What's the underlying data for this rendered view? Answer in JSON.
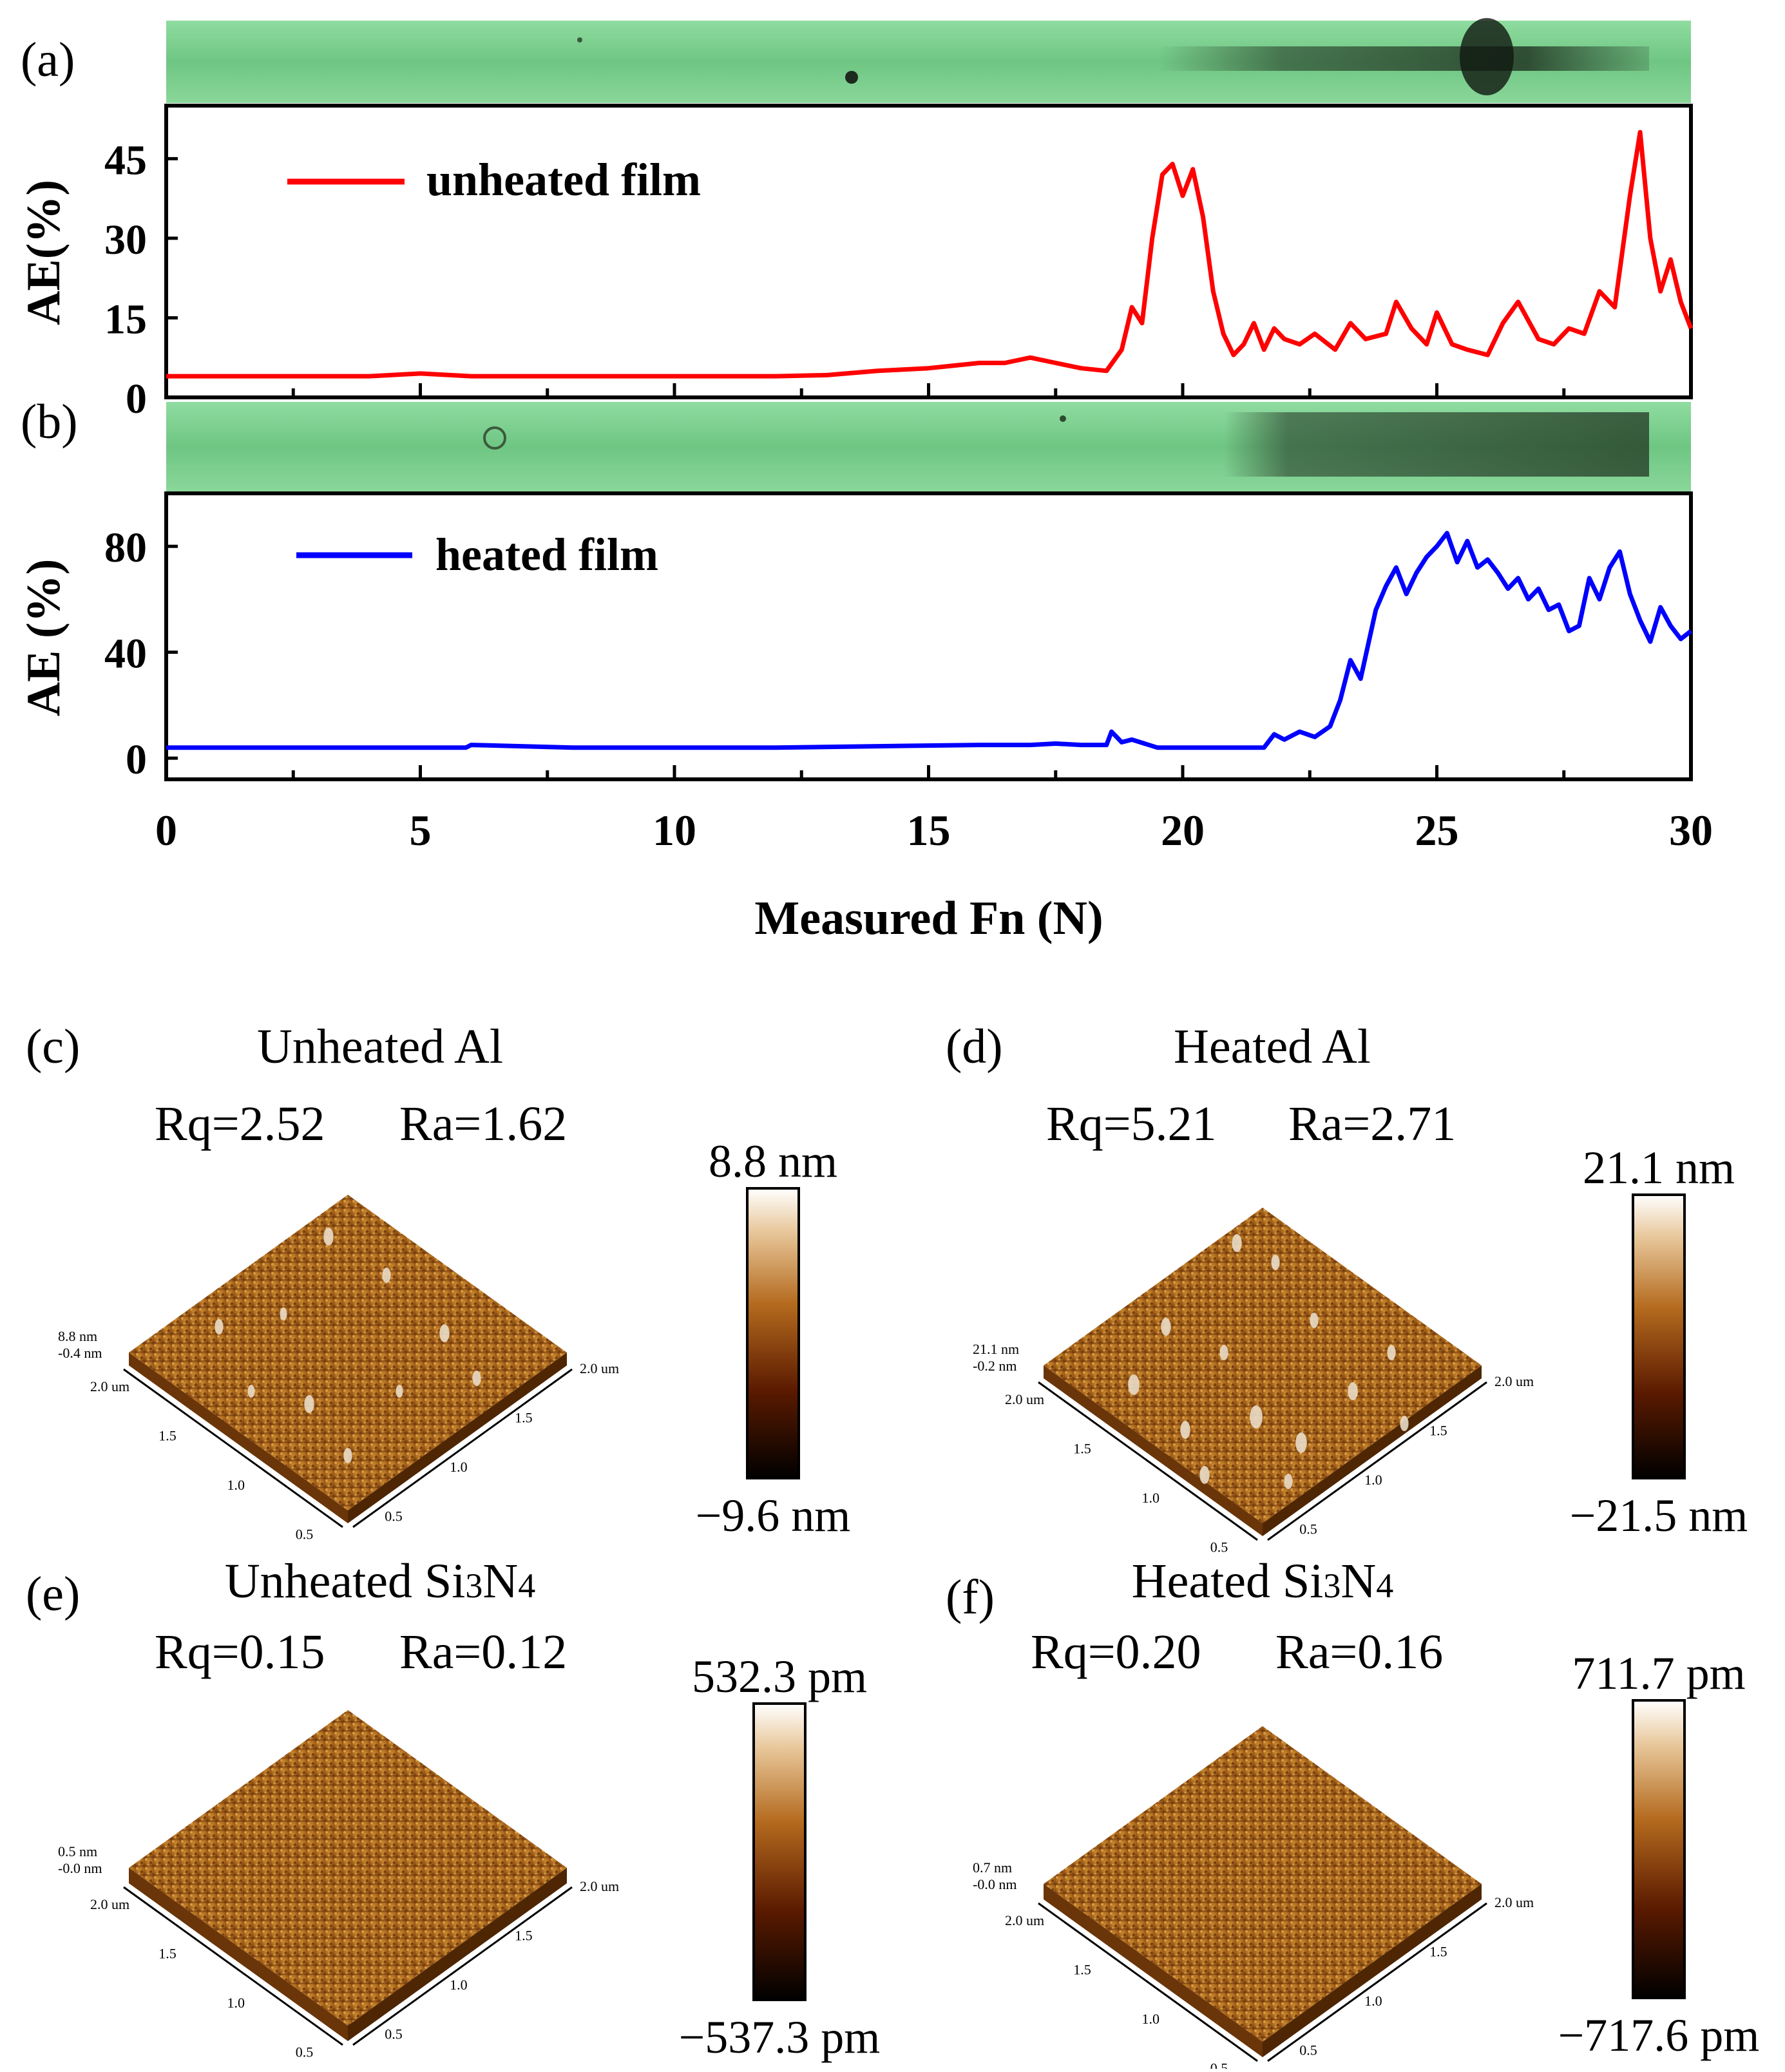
{
  "panels": {
    "a": {
      "label": "(a)"
    },
    "b": {
      "label": "(b)"
    },
    "c": {
      "label": "(c)",
      "title": "Unheated Al",
      "rq": "Rq=2.52",
      "ra": "Ra=1.62",
      "scale_max": "8.8 nm",
      "scale_min": "−9.6 nm",
      "axis_top": "8.8 nm",
      "axis_bottom": "-0.4 nm"
    },
    "d": {
      "label": "(d)",
      "title": "Heated Al",
      "rq": "Rq=5.21",
      "ra": "Ra=2.71",
      "scale_max": "21.1 nm",
      "scale_min": "−21.5 nm",
      "axis_top": "21.1 nm",
      "axis_bottom": "-0.2 nm"
    },
    "e": {
      "label": "(e)",
      "title_main": "Unheated Si",
      "sub1": "3",
      "title_n": "N",
      "sub2": "4",
      "rq": "Rq=0.15",
      "ra": "Ra=0.12",
      "scale_max": "532.3 pm",
      "scale_min": "−537.3 pm",
      "axis_top": "0.5 nm",
      "axis_bottom": "-0.0 nm"
    },
    "f": {
      "label": "(f)",
      "title_main": "Heated Si",
      "sub1": "3",
      "title_n": "N",
      "sub2": "4",
      "rq": "Rq=0.20",
      "ra": "Ra=0.16",
      "scale_max": "711.7 pm",
      "scale_min": "−717.6 pm",
      "axis_top": "0.7 nm",
      "axis_bottom": "-0.0 nm"
    }
  },
  "afm_axis_ticks": {
    "left": [
      "2.0 um",
      "1.5",
      "1.0",
      "0.5"
    ],
    "right": [
      "2.0 um",
      "1.5",
      "1.0",
      "0.5"
    ]
  },
  "colors": {
    "unheated": "#ff0000",
    "heated": "#0000ff",
    "track": "#7fd08f"
  },
  "chart_data": [
    {
      "type": "line",
      "panel": "a",
      "title": "",
      "xlabel": "Measured Fn (N)",
      "ylabel": "AE(%)",
      "xlim": [
        0,
        30
      ],
      "ylim": [
        0,
        55
      ],
      "yticks": [
        "0",
        "15",
        "30",
        "45"
      ],
      "xticks": [
        "0",
        "5",
        "10",
        "15",
        "20",
        "25",
        "30"
      ],
      "legend": "top-left",
      "series": [
        {
          "name": "unheated film",
          "x": [
            0,
            2,
            4,
            5,
            6,
            8,
            10,
            12,
            13,
            14,
            15,
            15.5,
            16,
            16.5,
            17,
            17.5,
            18,
            18.5,
            18.8,
            19,
            19.2,
            19.4,
            19.6,
            19.8,
            20,
            20.2,
            20.4,
            20.6,
            20.8,
            21,
            21.2,
            21.4,
            21.6,
            21.8,
            22,
            22.3,
            22.6,
            23,
            23.3,
            23.6,
            24,
            24.2,
            24.5,
            24.8,
            25,
            25.3,
            25.6,
            26,
            26.3,
            26.6,
            27,
            27.3,
            27.6,
            27.9,
            28.2,
            28.5,
            28.8,
            29,
            29.2,
            29.4,
            29.6,
            29.8,
            30
          ],
          "values": [
            4,
            4,
            4,
            4.5,
            4,
            4,
            4,
            4,
            4.2,
            5,
            5.5,
            6,
            6.5,
            6.5,
            7.5,
            6.5,
            5.5,
            5,
            9,
            17,
            14,
            30,
            42,
            44,
            38,
            43,
            34,
            20,
            12,
            8,
            10,
            14,
            9,
            13,
            11,
            10,
            12,
            9,
            14,
            11,
            12,
            18,
            13,
            10,
            16,
            10,
            9,
            8,
            14,
            18,
            11,
            10,
            13,
            12,
            20,
            17,
            38,
            50,
            30,
            20,
            26,
            18,
            13
          ]
        }
      ]
    },
    {
      "type": "line",
      "panel": "b",
      "title": "",
      "xlabel": "Measured Fn (N)",
      "ylabel": "AE (%)",
      "xlim": [
        0,
        30
      ],
      "ylim": [
        -8,
        100
      ],
      "yticks": [
        "0",
        "40",
        "80"
      ],
      "xticks": [
        "0",
        "5",
        "10",
        "15",
        "20",
        "25",
        "30"
      ],
      "legend": "top-left",
      "series": [
        {
          "name": "heated film",
          "x": [
            0,
            2,
            5,
            5.9,
            6,
            8,
            10,
            12,
            14,
            16,
            17,
            17.5,
            18,
            18.5,
            18.6,
            18.8,
            19,
            19.5,
            20,
            21,
            21.6,
            21.8,
            22,
            22.3,
            22.6,
            22.9,
            23.1,
            23.3,
            23.5,
            23.8,
            24,
            24.2,
            24.4,
            24.6,
            24.8,
            25,
            25.2,
            25.4,
            25.6,
            25.8,
            26,
            26.2,
            26.4,
            26.6,
            26.8,
            27,
            27.2,
            27.4,
            27.6,
            27.8,
            28,
            28.2,
            28.4,
            28.6,
            28.8,
            29,
            29.2,
            29.4,
            29.6,
            29.8,
            30
          ],
          "values": [
            4,
            4,
            4,
            4,
            5,
            4,
            4,
            4,
            4.5,
            5,
            5,
            5.5,
            5,
            5,
            10,
            6,
            7,
            4,
            4,
            4,
            4,
            9,
            7,
            10,
            8,
            12,
            22,
            37,
            30,
            56,
            65,
            72,
            62,
            70,
            76,
            80,
            85,
            74,
            82,
            72,
            75,
            70,
            64,
            68,
            60,
            64,
            56,
            58,
            48,
            50,
            68,
            60,
            72,
            78,
            62,
            52,
            44,
            57,
            50,
            45,
            48
          ]
        }
      ]
    }
  ]
}
